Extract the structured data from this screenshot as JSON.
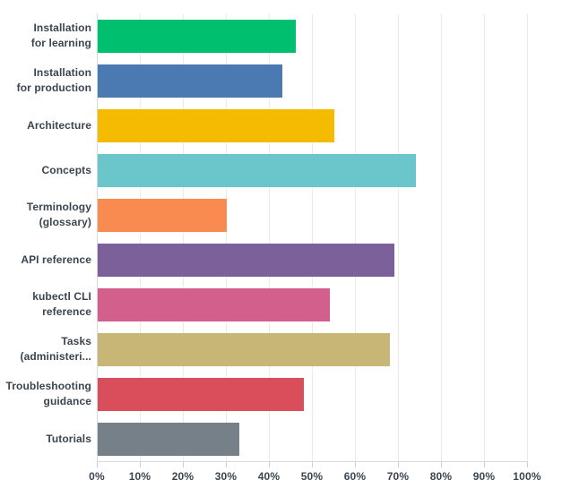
{
  "chart_data": {
    "type": "bar",
    "orientation": "horizontal",
    "categories": [
      "Installation for learning",
      "Installation for production",
      "Architecture",
      "Concepts",
      "Terminology (glossary)",
      "API reference",
      "kubectl CLI reference",
      "Tasks (administeri...",
      "Troubleshooting guidance",
      "Tutorials"
    ],
    "category_label_lines": [
      [
        "Installation",
        "for learning"
      ],
      [
        "Installation",
        "for production"
      ],
      [
        "Architecture"
      ],
      [
        "Concepts"
      ],
      [
        "Terminology",
        "(glossary)"
      ],
      [
        "API reference"
      ],
      [
        "kubectl CLI",
        "reference"
      ],
      [
        "Tasks",
        "(administeri..."
      ],
      [
        "Troubleshooting",
        "guidance"
      ],
      [
        "Tutorials"
      ]
    ],
    "values": [
      46,
      43,
      55,
      74,
      30,
      69,
      54,
      68,
      48,
      33
    ],
    "value_unit": "%",
    "bar_colors": [
      "#00BF6F",
      "#4B79B2",
      "#F5BB00",
      "#6BC6CB",
      "#F98B50",
      "#7B609A",
      "#D35F8D",
      "#C7B676",
      "#DA4E5C",
      "#768089"
    ],
    "xlim": [
      0,
      100
    ],
    "x_ticks": [
      "0%",
      "10%",
      "20%",
      "30%",
      "40%",
      "50%",
      "60%",
      "70%",
      "80%",
      "90%",
      "100%"
    ],
    "grid": true,
    "legend": false
  },
  "style": {
    "text_color": "#3B4550",
    "gridline_color": "#EBEBEB",
    "axis_line_color": "#D7DADD",
    "tick_color": "#C9CDD1",
    "background": "#FFFFFF"
  }
}
